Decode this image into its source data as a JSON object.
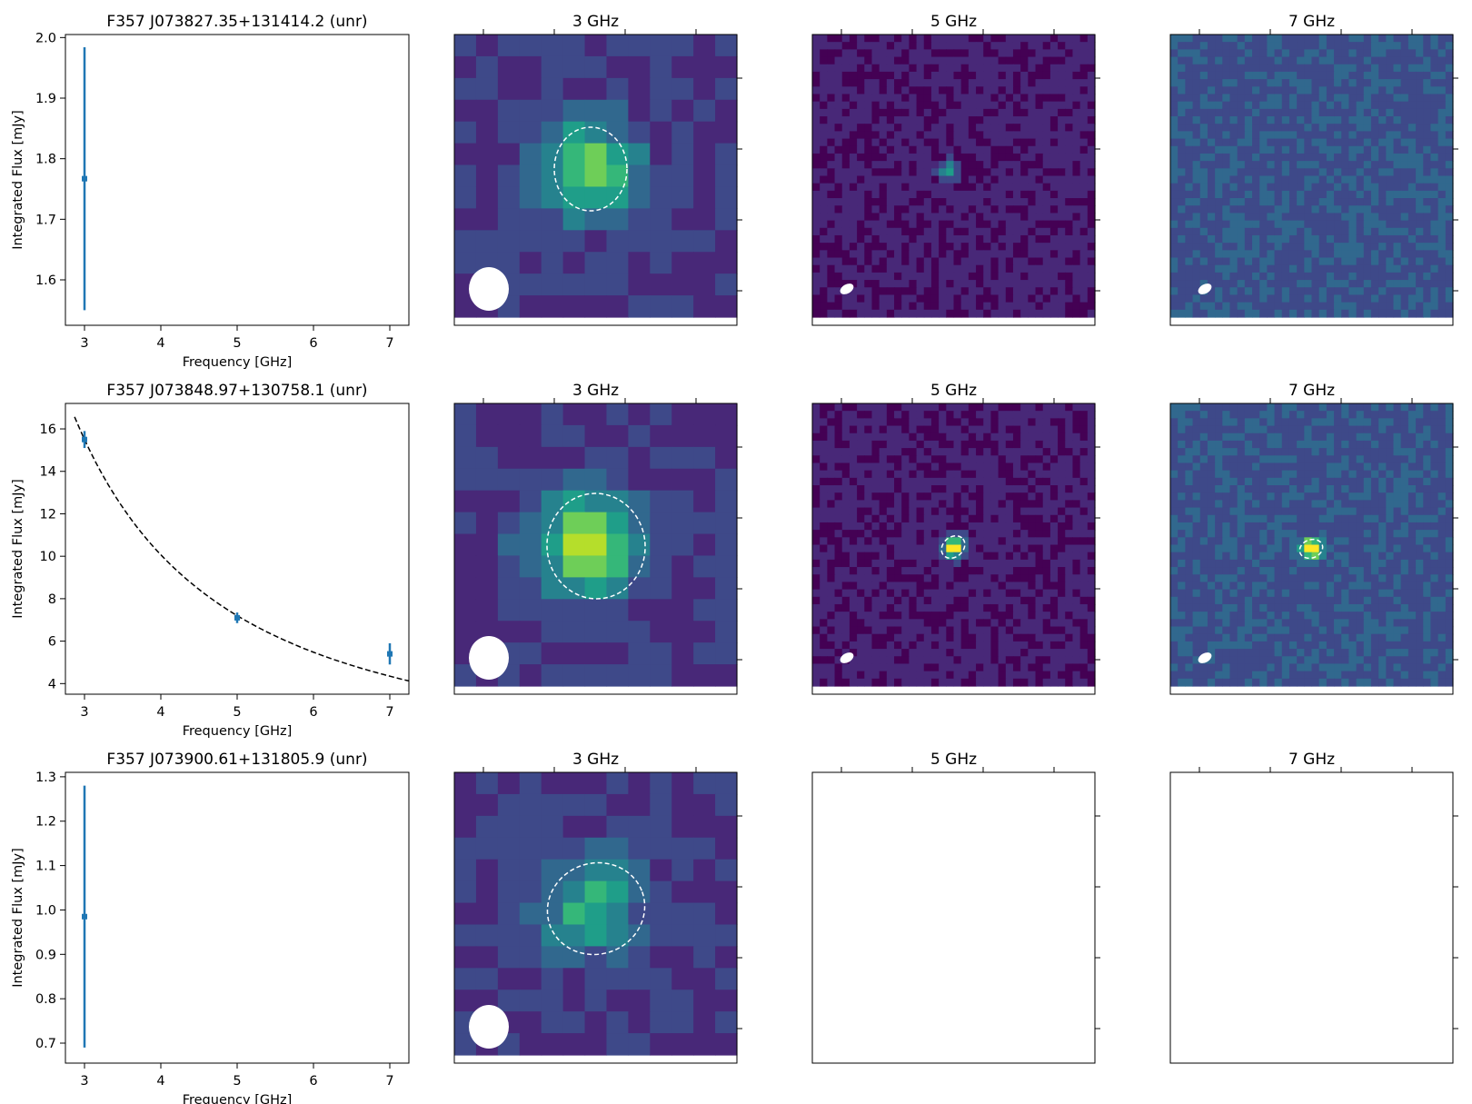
{
  "figure": {
    "xlabel": "Frequency [GHz]",
    "ylabel": "Integrated Flux [mJy]",
    "colors": {
      "errorbar": "#1f77b4",
      "fit": "#000000",
      "ellipse": "#ffffff"
    },
    "colormap": [
      "#440154",
      "#482878",
      "#3e4989",
      "#31688e",
      "#26828e",
      "#1f9e89",
      "#35b779",
      "#6ece58",
      "#b5de2b",
      "#fde725"
    ]
  },
  "chart_data": [
    {
      "type": "scatter",
      "title": "F357 J073827.35+131414.2 (unr)",
      "xlabel": "Frequency [GHz]",
      "ylabel": "Integrated Flux [mJy]",
      "xlim": [
        2.75,
        7.25
      ],
      "ylim": [
        1.525,
        2.005
      ],
      "xticks": [
        "3",
        "4",
        "5",
        "6",
        "7"
      ],
      "yticks": [
        "1.6",
        "1.7",
        "1.8",
        "1.9",
        "2.0"
      ],
      "points": [
        {
          "x": 3,
          "y": 1.767,
          "yerr_low": 0.217,
          "yerr_high": 0.217
        }
      ],
      "fit": null,
      "images": [
        {
          "title": "3 GHz",
          "has_data": true,
          "source_level": 0.55
        },
        {
          "title": "5 GHz",
          "has_data": true,
          "source_level": 0.45
        },
        {
          "title": "7 GHz",
          "has_data": true,
          "source_level": 0.4
        }
      ]
    },
    {
      "type": "scatter",
      "title": "F357 J073848.97+130758.1 (unr)",
      "xlabel": "Frequency [GHz]",
      "ylabel": "Integrated Flux [mJy]",
      "xlim": [
        2.75,
        7.25
      ],
      "ylim": [
        3.5,
        17.2
      ],
      "xticks": [
        "3",
        "4",
        "5",
        "6",
        "7"
      ],
      "yticks": [
        "4",
        "6",
        "8",
        "10",
        "12",
        "14",
        "16"
      ],
      "points": [
        {
          "x": 3,
          "y": 15.5,
          "yerr_low": 0.4,
          "yerr_high": 0.4
        },
        {
          "x": 5,
          "y": 7.1,
          "yerr_low": 0.25,
          "yerr_high": 0.25
        },
        {
          "x": 7,
          "y": 5.4,
          "yerr_low": 0.5,
          "yerr_high": 0.5
        }
      ],
      "fit": {
        "model": "power_law",
        "amplitude": 15.5,
        "ref_freq": 3,
        "index": -1.5,
        "x_range": [
          2.87,
          7.25
        ]
      },
      "images": [
        {
          "title": "3 GHz",
          "has_data": true,
          "source_level": 0.68
        },
        {
          "title": "5 GHz",
          "has_data": true,
          "source_level": 1.0
        },
        {
          "title": "7 GHz",
          "has_data": true,
          "source_level": 0.92
        }
      ]
    },
    {
      "type": "scatter",
      "title": "F357 J073900.61+131805.9 (unr)",
      "xlabel": "Frequency [GHz]",
      "ylabel": "Integrated Flux [mJy]",
      "xlim": [
        2.75,
        7.25
      ],
      "ylim": [
        0.655,
        1.31
      ],
      "xticks": [
        "3",
        "4",
        "5",
        "6",
        "7"
      ],
      "yticks": [
        "0.7",
        "0.8",
        "0.9",
        "1.0",
        "1.1",
        "1.2",
        "1.3"
      ],
      "points": [
        {
          "x": 3,
          "y": 0.985,
          "yerr_low": 0.295,
          "yerr_high": 0.295
        }
      ],
      "fit": null,
      "images": [
        {
          "title": "3 GHz",
          "has_data": true,
          "source_level": 0.38
        },
        {
          "title": "5 GHz",
          "has_data": false,
          "source_level": 0
        },
        {
          "title": "7 GHz",
          "has_data": false,
          "source_level": 0
        }
      ]
    }
  ]
}
